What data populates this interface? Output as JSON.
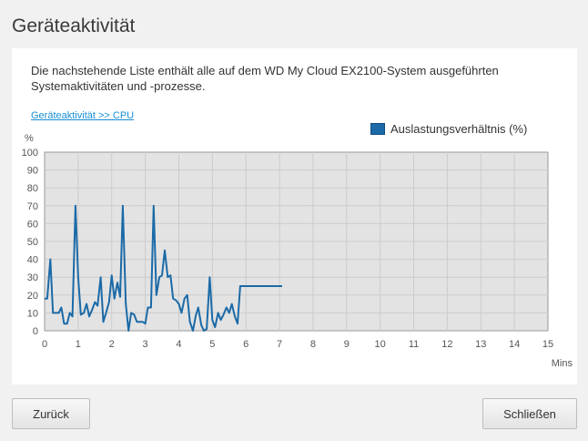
{
  "page": {
    "title": "Geräteaktivität",
    "description": "Die nachstehende Liste enthält alle auf dem WD My Cloud EX2100-System ausgeführten Systemaktivitäten und -prozesse.",
    "breadcrumb": "Geräteaktivität >> CPU"
  },
  "buttons": {
    "back_label": "Zurück",
    "close_label": "Schließen"
  },
  "chart_data": {
    "type": "line",
    "title": "",
    "ylabel": "%",
    "xlabel": "Mins",
    "ylim": [
      0,
      100
    ],
    "xlim": [
      0,
      15
    ],
    "yticks": [
      0,
      10,
      20,
      30,
      40,
      50,
      60,
      70,
      80,
      90,
      100
    ],
    "xticks": [
      0,
      1,
      2,
      3,
      4,
      5,
      6,
      7,
      8,
      9,
      10,
      11,
      12,
      13,
      14,
      15
    ],
    "grid": true,
    "legend_position": "top-right",
    "colors": {
      "series": "#1b6aa7",
      "plot_bg": "#e3e3e3",
      "grid": "#cccccc"
    },
    "series": [
      {
        "name": "Auslastungsverhältnis (%)",
        "x": [
          0,
          0.08,
          0.17,
          0.25,
          0.33,
          0.42,
          0.5,
          0.58,
          0.67,
          0.75,
          0.83,
          0.92,
          1.0,
          1.08,
          1.17,
          1.25,
          1.33,
          1.42,
          1.5,
          1.58,
          1.67,
          1.75,
          1.83,
          1.92,
          2.0,
          2.08,
          2.17,
          2.25,
          2.33,
          2.42,
          2.5,
          2.58,
          2.67,
          2.75,
          2.83,
          2.92,
          3.0,
          3.08,
          3.17,
          3.25,
          3.33,
          3.42,
          3.5,
          3.58,
          3.67,
          3.75,
          3.83,
          3.92,
          4.0,
          4.08,
          4.17,
          4.25,
          4.33,
          4.42,
          4.5,
          4.58,
          4.67,
          4.75,
          4.83,
          4.92,
          5.0,
          5.08,
          5.17,
          5.25,
          5.33,
          5.42,
          5.5,
          5.58,
          5.67,
          5.75,
          5.83,
          5.92,
          6.0,
          6.08,
          6.17,
          6.25,
          6.33,
          6.42,
          6.5,
          6.58,
          6.67,
          6.75,
          6.83,
          6.92,
          7.0,
          7.08
        ],
        "values": [
          18,
          18,
          40,
          10,
          10,
          10,
          13,
          4,
          4,
          10,
          8,
          70,
          30,
          9,
          10,
          15,
          8,
          12,
          16,
          14,
          30,
          5,
          10,
          16,
          31,
          18,
          27,
          19,
          70,
          15,
          0,
          10,
          9,
          5,
          5,
          5,
          4,
          13,
          13,
          70,
          20,
          30,
          31,
          45,
          30,
          31,
          18,
          17,
          15,
          10,
          18,
          20,
          5,
          0,
          8,
          13,
          3,
          0,
          1,
          30,
          6,
          2,
          10,
          6,
          9,
          13,
          10,
          15,
          8,
          4,
          25,
          25,
          25,
          25,
          25,
          25,
          25,
          25,
          25,
          25,
          25,
          25,
          25,
          25,
          25,
          25
        ]
      }
    ]
  }
}
